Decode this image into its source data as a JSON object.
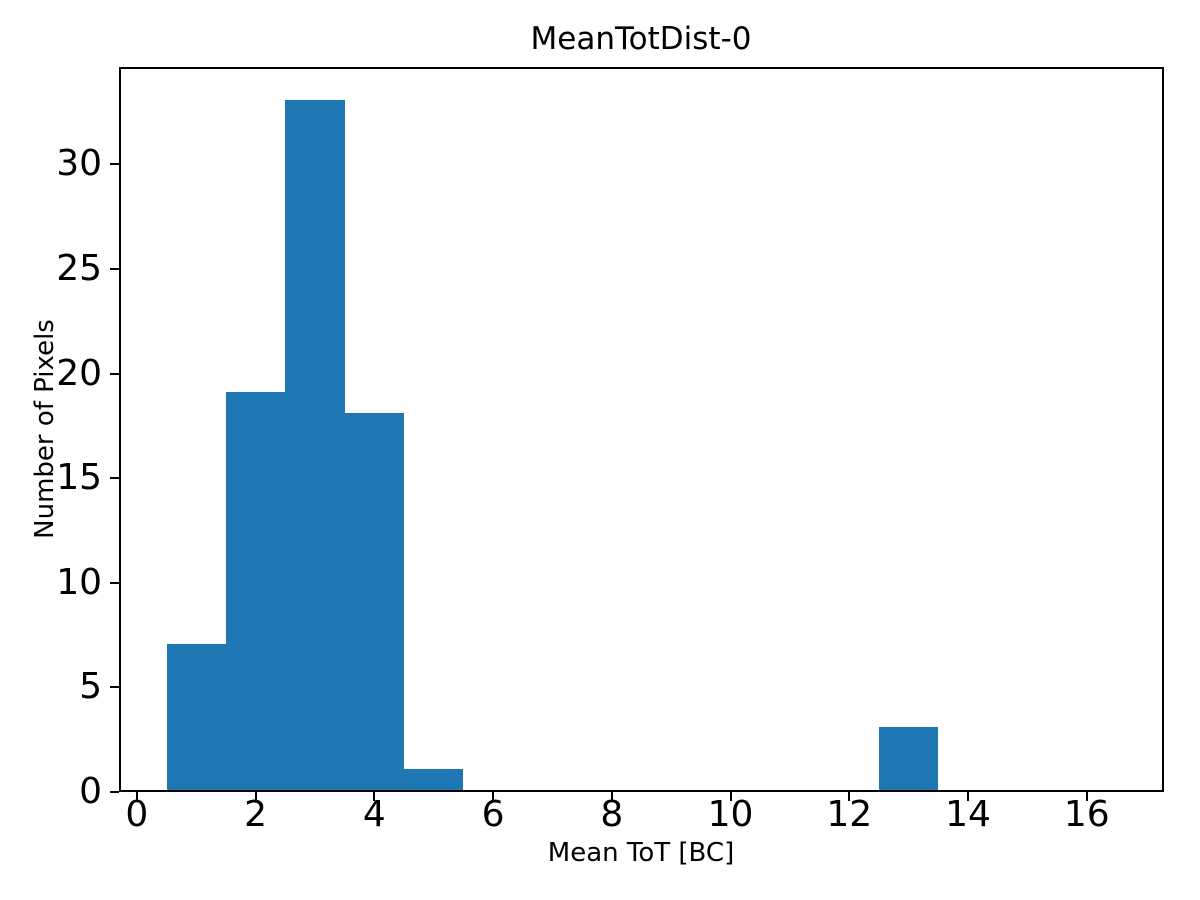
{
  "figure": {
    "background": "#ffffff",
    "text_color": "#000000"
  },
  "chart_data": {
    "type": "bar",
    "subtype": "histogram",
    "title": "MeanTotDist-0",
    "xlabel": "Mean ToT [BC]",
    "ylabel": "Number of Pixels",
    "bin_edges": [
      0.5,
      1.5,
      2.5,
      3.5,
      4.5,
      5.5,
      6.5,
      7.5,
      8.5,
      9.5,
      10.5,
      11.5,
      12.5,
      13.5,
      14.5,
      15.5,
      16.5
    ],
    "counts": [
      7,
      19,
      33,
      18,
      1,
      0,
      0,
      0,
      0,
      0,
      0,
      0,
      3,
      0,
      0,
      0
    ],
    "xlim": [
      -0.3,
      17.3
    ],
    "ylim": [
      0,
      34.65
    ],
    "x_ticks": [
      0,
      2,
      4,
      6,
      8,
      10,
      12,
      14,
      16
    ],
    "y_ticks": [
      0,
      5,
      10,
      15,
      20,
      25,
      30
    ],
    "bar_color": "#1f77b4",
    "axis_color": "#000000",
    "grid": false,
    "legend": null
  }
}
